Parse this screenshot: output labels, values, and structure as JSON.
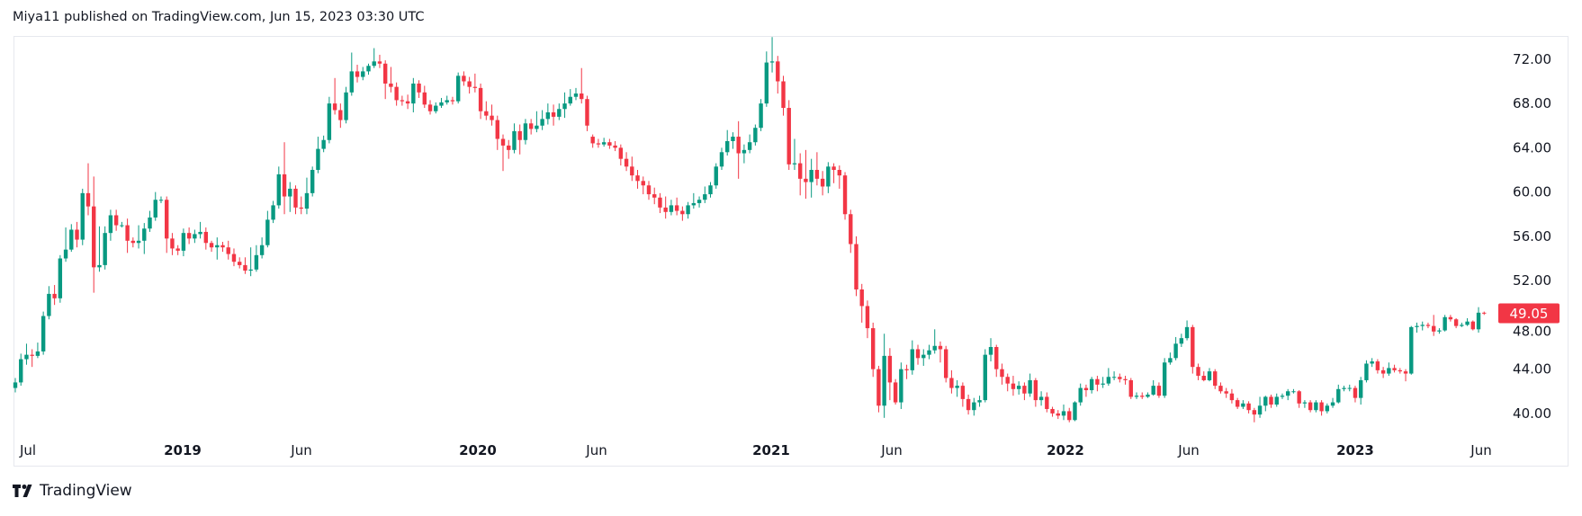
{
  "header": {
    "title": "Miya11 published on TradingView.com, Jun 15, 2023 03:30 UTC"
  },
  "footer": {
    "brand": "TradingView"
  },
  "colors": {
    "up": "#089981",
    "down": "#F23645",
    "text": "#131722",
    "last_price_bg": "#F23645"
  },
  "chart_data": {
    "type": "candlestick",
    "x_tick_labels": [
      "Jul",
      "2019",
      "Jun",
      "2020",
      "Jun",
      "2021",
      "Jun",
      "2022",
      "Jun",
      "2023",
      "Jun"
    ],
    "y_tick_labels": [
      "72.00",
      "68.00",
      "64.00",
      "60.00",
      "56.00",
      "52.00",
      "48.00",
      "44.00",
      "40.00"
    ],
    "ylim": [
      35.2,
      74.1
    ],
    "grid": false,
    "last_price": "49.05",
    "candle_format": [
      "open",
      "high",
      "low",
      "close"
    ],
    "candles": [
      [
        42.3,
        43.2,
        41.9,
        42.8
      ],
      [
        42.8,
        45.4,
        42.5,
        44.9
      ],
      [
        44.9,
        46.3,
        44.4,
        45.3
      ],
      [
        45.3,
        45.8,
        44.2,
        45.2
      ],
      [
        45.2,
        46.4,
        45.0,
        45.6
      ],
      [
        45.6,
        49.2,
        45.3,
        48.8
      ],
      [
        48.8,
        51.5,
        48.5,
        50.8
      ],
      [
        50.8,
        51.6,
        49.8,
        50.4
      ],
      [
        50.4,
        54.3,
        50.0,
        54.0
      ],
      [
        54.0,
        56.8,
        53.7,
        54.8
      ],
      [
        54.8,
        57.1,
        54.6,
        56.6
      ],
      [
        56.6,
        57.3,
        55.0,
        55.7
      ],
      [
        55.7,
        60.3,
        55.2,
        59.9
      ],
      [
        59.9,
        62.6,
        57.9,
        58.7
      ],
      [
        58.7,
        61.4,
        50.9,
        53.2
      ],
      [
        53.2,
        56.9,
        52.8,
        53.4
      ],
      [
        53.4,
        56.9,
        53.0,
        56.3
      ],
      [
        56.3,
        58.4,
        55.6,
        57.9
      ],
      [
        57.9,
        58.4,
        56.5,
        57.0
      ],
      [
        57.0,
        57.3,
        56.8,
        57.0
      ],
      [
        57.0,
        57.6,
        54.5,
        55.6
      ],
      [
        55.6,
        55.9,
        55.0,
        55.4
      ],
      [
        55.4,
        57.0,
        54.9,
        55.6
      ],
      [
        55.6,
        57.2,
        54.4,
        56.7
      ],
      [
        56.7,
        58.3,
        56.4,
        57.7
      ],
      [
        57.7,
        60.0,
        57.4,
        59.3
      ],
      [
        59.3,
        59.6,
        59.0,
        59.3
      ],
      [
        59.3,
        59.6,
        54.5,
        55.8
      ],
      [
        55.8,
        56.3,
        54.3,
        54.9
      ],
      [
        54.9,
        55.2,
        54.3,
        54.7
      ],
      [
        54.7,
        56.7,
        54.2,
        56.3
      ],
      [
        56.3,
        56.8,
        55.3,
        55.8
      ],
      [
        55.8,
        56.6,
        55.4,
        56.2
      ],
      [
        56.2,
        57.3,
        55.8,
        56.4
      ],
      [
        56.4,
        56.8,
        54.8,
        55.4
      ],
      [
        55.4,
        55.6,
        54.6,
        55.0
      ],
      [
        55.0,
        55.9,
        53.9,
        55.2
      ],
      [
        55.2,
        55.5,
        54.6,
        55.0
      ],
      [
        55.0,
        55.6,
        53.9,
        54.4
      ],
      [
        54.4,
        54.9,
        53.3,
        53.7
      ],
      [
        53.7,
        54.1,
        53.1,
        53.4
      ],
      [
        53.4,
        54.1,
        52.6,
        52.9
      ],
      [
        52.9,
        55.0,
        52.4,
        53.0
      ],
      [
        53.0,
        55.2,
        52.8,
        54.3
      ],
      [
        54.3,
        55.9,
        54.0,
        55.2
      ],
      [
        55.2,
        58.3,
        55.0,
        57.5
      ],
      [
        57.5,
        59.2,
        57.2,
        58.8
      ],
      [
        58.8,
        62.3,
        58.5,
        61.6
      ],
      [
        61.6,
        64.5,
        58.0,
        59.6
      ],
      [
        59.6,
        60.9,
        58.2,
        60.3
      ],
      [
        60.3,
        60.6,
        58.0,
        58.6
      ],
      [
        58.6,
        59.6,
        58.0,
        58.5
      ],
      [
        58.5,
        61.3,
        58.0,
        59.9
      ],
      [
        59.9,
        62.3,
        59.6,
        62.0
      ],
      [
        62.0,
        65.0,
        61.7,
        63.9
      ],
      [
        63.9,
        65.1,
        63.6,
        64.7
      ],
      [
        64.7,
        68.6,
        64.4,
        68.0
      ],
      [
        68.0,
        70.3,
        67.0,
        67.4
      ],
      [
        67.4,
        68.0,
        65.8,
        66.5
      ],
      [
        66.5,
        69.5,
        66.2,
        69.0
      ],
      [
        69.0,
        72.6,
        68.7,
        70.9
      ],
      [
        70.9,
        71.5,
        69.9,
        70.4
      ],
      [
        70.4,
        71.3,
        70.1,
        70.9
      ],
      [
        70.9,
        71.6,
        70.6,
        71.4
      ],
      [
        71.4,
        73.0,
        71.2,
        71.8
      ],
      [
        71.8,
        72.4,
        71.2,
        71.6
      ],
      [
        71.6,
        71.9,
        68.4,
        69.8
      ],
      [
        69.8,
        71.3,
        69.0,
        69.5
      ],
      [
        69.5,
        69.9,
        67.8,
        68.3
      ],
      [
        68.3,
        68.7,
        67.8,
        68.2
      ],
      [
        68.2,
        68.8,
        67.5,
        68.0
      ],
      [
        68.0,
        70.3,
        67.2,
        69.8
      ],
      [
        69.8,
        70.1,
        68.5,
        69.0
      ],
      [
        69.0,
        69.6,
        67.6,
        67.9
      ],
      [
        67.9,
        68.3,
        67.0,
        67.3
      ],
      [
        67.3,
        68.1,
        67.1,
        67.8
      ],
      [
        67.8,
        68.5,
        67.6,
        68.1
      ],
      [
        68.1,
        68.7,
        67.9,
        68.3
      ],
      [
        68.3,
        68.6,
        67.9,
        68.2
      ],
      [
        68.2,
        70.8,
        68.0,
        70.5
      ],
      [
        70.5,
        70.9,
        69.6,
        70.0
      ],
      [
        70.0,
        70.4,
        68.9,
        69.5
      ],
      [
        69.5,
        70.7,
        69.0,
        69.4
      ],
      [
        69.4,
        69.8,
        66.6,
        67.3
      ],
      [
        67.3,
        68.2,
        66.5,
        66.9
      ],
      [
        66.9,
        67.9,
        66.0,
        66.5
      ],
      [
        66.5,
        66.9,
        63.8,
        64.8
      ],
      [
        64.8,
        65.2,
        61.9,
        64.2
      ],
      [
        64.2,
        64.7,
        63.0,
        63.8
      ],
      [
        63.8,
        66.2,
        63.5,
        65.5
      ],
      [
        65.5,
        66.1,
        63.4,
        64.7
      ],
      [
        64.7,
        66.6,
        64.3,
        66.2
      ],
      [
        66.2,
        66.6,
        65.2,
        65.7
      ],
      [
        65.7,
        67.3,
        65.4,
        66.0
      ],
      [
        66.0,
        67.4,
        65.6,
        66.6
      ],
      [
        66.6,
        68.0,
        66.1,
        67.2
      ],
      [
        67.2,
        67.9,
        66.0,
        66.8
      ],
      [
        66.8,
        68.0,
        66.5,
        67.5
      ],
      [
        67.5,
        69.0,
        66.7,
        68.0
      ],
      [
        68.0,
        69.3,
        67.8,
        68.6
      ],
      [
        68.6,
        69.4,
        68.3,
        68.9
      ],
      [
        68.9,
        71.2,
        68.0,
        68.4
      ],
      [
        68.4,
        68.7,
        65.5,
        66.0
      ],
      [
        65.0,
        65.2,
        64.0,
        64.4
      ],
      [
        64.4,
        64.8,
        64.0,
        64.3
      ],
      [
        64.3,
        64.9,
        64.1,
        64.5
      ],
      [
        64.5,
        64.8,
        63.9,
        64.2
      ],
      [
        64.2,
        64.6,
        63.7,
        64.0
      ],
      [
        64.0,
        64.3,
        62.4,
        63.0
      ],
      [
        63.0,
        63.6,
        61.9,
        62.3
      ],
      [
        62.3,
        63.2,
        61.0,
        61.5
      ],
      [
        61.5,
        62.0,
        60.3,
        61.0
      ],
      [
        61.0,
        61.4,
        59.8,
        60.6
      ],
      [
        60.6,
        61.0,
        59.3,
        59.8
      ],
      [
        59.8,
        60.4,
        58.9,
        59.5
      ],
      [
        59.5,
        59.9,
        58.1,
        58.6
      ],
      [
        58.6,
        59.6,
        57.6,
        58.2
      ],
      [
        58.2,
        59.3,
        57.9,
        58.8
      ],
      [
        58.8,
        59.5,
        57.9,
        58.3
      ],
      [
        58.3,
        58.7,
        57.4,
        58.0
      ],
      [
        58.0,
        59.1,
        57.6,
        58.8
      ],
      [
        58.8,
        59.9,
        58.5,
        59.0
      ],
      [
        59.0,
        59.6,
        58.6,
        59.3
      ],
      [
        59.3,
        60.5,
        59.0,
        59.8
      ],
      [
        59.8,
        60.9,
        59.5,
        60.6
      ],
      [
        60.6,
        62.6,
        60.3,
        62.3
      ],
      [
        62.3,
        64.0,
        62.0,
        63.6
      ],
      [
        63.6,
        65.6,
        63.3,
        64.6
      ],
      [
        64.6,
        65.4,
        63.9,
        65.0
      ],
      [
        65.0,
        66.4,
        61.2,
        63.5
      ],
      [
        63.5,
        64.3,
        62.6,
        63.8
      ],
      [
        63.8,
        65.2,
        63.5,
        64.5
      ],
      [
        64.5,
        66.1,
        64.2,
        65.8
      ],
      [
        65.8,
        68.4,
        65.5,
        68.0
      ],
      [
        68.0,
        72.7,
        67.7,
        71.7
      ],
      [
        71.7,
        74.0,
        70.8,
        71.8
      ],
      [
        71.8,
        72.3,
        68.9,
        70.0
      ],
      [
        70.0,
        70.5,
        66.9,
        67.6
      ],
      [
        67.6,
        68.3,
        62.0,
        62.5
      ],
      [
        62.5,
        64.8,
        62.0,
        62.6
      ],
      [
        62.6,
        63.5,
        59.7,
        61.2
      ],
      [
        61.2,
        63.8,
        59.4,
        60.9
      ],
      [
        60.9,
        63.0,
        59.5,
        62.0
      ],
      [
        62.0,
        63.6,
        60.6,
        61.2
      ],
      [
        61.2,
        61.9,
        59.7,
        60.5
      ],
      [
        60.5,
        62.7,
        59.9,
        62.3
      ],
      [
        62.3,
        62.6,
        60.8,
        62.0
      ],
      [
        62.0,
        62.4,
        60.3,
        61.5
      ],
      [
        61.5,
        61.8,
        57.5,
        58.0
      ],
      [
        58.0,
        58.4,
        54.5,
        55.3
      ],
      [
        55.3,
        56.0,
        50.6,
        51.2
      ],
      [
        51.2,
        51.7,
        48.2,
        49.7
      ],
      [
        49.7,
        50.2,
        46.8,
        47.7
      ],
      [
        47.7,
        48.2,
        43.3,
        44.0
      ],
      [
        44.0,
        44.3,
        40.1,
        40.7
      ],
      [
        40.7,
        47.2,
        39.6,
        45.2
      ],
      [
        45.2,
        45.9,
        41.2,
        42.8
      ],
      [
        42.8,
        43.1,
        40.8,
        41.0
      ],
      [
        41.0,
        44.6,
        40.4,
        44.0
      ],
      [
        44.0,
        44.4,
        43.1,
        43.9
      ],
      [
        43.9,
        46.6,
        43.5,
        45.8
      ],
      [
        45.8,
        46.2,
        44.4,
        45.0
      ],
      [
        45.0,
        45.8,
        44.3,
        45.3
      ],
      [
        45.3,
        46.2,
        44.9,
        45.7
      ],
      [
        45.7,
        47.6,
        45.4,
        46.1
      ],
      [
        46.1,
        46.5,
        44.6,
        45.8
      ],
      [
        45.8,
        46.1,
        42.8,
        43.2
      ],
      [
        43.2,
        43.9,
        41.8,
        42.3
      ],
      [
        42.3,
        43.0,
        41.5,
        42.5
      ],
      [
        42.5,
        42.8,
        40.6,
        41.3
      ],
      [
        41.3,
        41.7,
        39.9,
        40.3
      ],
      [
        40.3,
        41.4,
        39.8,
        41.0
      ],
      [
        41.0,
        41.6,
        40.6,
        41.2
      ],
      [
        41.2,
        45.8,
        41.0,
        45.3
      ],
      [
        45.3,
        46.8,
        44.7,
        46.0
      ],
      [
        46.0,
        46.2,
        43.3,
        44.0
      ],
      [
        44.0,
        44.5,
        42.6,
        43.3
      ],
      [
        43.3,
        43.6,
        42.0,
        42.7
      ],
      [
        42.7,
        43.4,
        41.6,
        42.2
      ],
      [
        42.2,
        42.9,
        41.7,
        42.5
      ],
      [
        42.5,
        42.8,
        41.2,
        41.8
      ],
      [
        41.8,
        43.6,
        41.5,
        43.0
      ],
      [
        43.0,
        43.2,
        40.6,
        41.2
      ],
      [
        41.2,
        42.0,
        40.7,
        41.5
      ],
      [
        41.5,
        41.9,
        40.1,
        40.4
      ],
      [
        40.4,
        40.6,
        39.7,
        40.0
      ],
      [
        40.0,
        40.3,
        39.5,
        39.8
      ],
      [
        39.8,
        40.8,
        39.4,
        40.2
      ],
      [
        40.2,
        40.5,
        39.2,
        39.4
      ],
      [
        39.4,
        41.1,
        39.3,
        41.0
      ],
      [
        41.0,
        42.7,
        40.7,
        42.3
      ],
      [
        42.3,
        42.6,
        41.5,
        42.1
      ],
      [
        42.1,
        43.3,
        41.8,
        43.1
      ],
      [
        43.1,
        43.4,
        42.0,
        42.6
      ],
      [
        42.6,
        43.3,
        42.3,
        42.7
      ],
      [
        42.7,
        44.1,
        42.5,
        43.3
      ],
      [
        43.3,
        43.8,
        43.0,
        43.3
      ],
      [
        43.3,
        43.6,
        42.8,
        43.1
      ],
      [
        43.1,
        43.4,
        42.6,
        43.0
      ],
      [
        43.0,
        43.2,
        41.3,
        41.5
      ],
      [
        41.5,
        41.9,
        41.3,
        41.6
      ],
      [
        41.6,
        41.9,
        41.3,
        41.5
      ],
      [
        41.5,
        41.9,
        41.4,
        41.7
      ],
      [
        41.7,
        43.0,
        41.6,
        42.5
      ],
      [
        42.5,
        42.8,
        41.4,
        41.6
      ],
      [
        41.6,
        45.0,
        41.4,
        44.6
      ],
      [
        44.6,
        45.5,
        44.4,
        45.0
      ],
      [
        45.0,
        46.9,
        44.8,
        46.3
      ],
      [
        46.3,
        47.2,
        46.0,
        46.8
      ],
      [
        46.8,
        48.4,
        46.6,
        47.8
      ],
      [
        47.8,
        48.0,
        43.6,
        44.2
      ],
      [
        44.2,
        44.5,
        43.0,
        43.4
      ],
      [
        43.4,
        43.8,
        42.9,
        43.0
      ],
      [
        43.0,
        44.1,
        42.9,
        43.8
      ],
      [
        43.8,
        44.0,
        42.2,
        42.5
      ],
      [
        42.5,
        42.8,
        41.8,
        42.0
      ],
      [
        42.0,
        42.3,
        41.4,
        41.8
      ],
      [
        41.8,
        42.2,
        40.9,
        41.2
      ],
      [
        41.2,
        41.4,
        40.4,
        40.6
      ],
      [
        40.6,
        41.2,
        40.4,
        40.9
      ],
      [
        40.9,
        41.1,
        40.0,
        40.3
      ],
      [
        40.3,
        40.5,
        39.2,
        39.9
      ],
      [
        39.9,
        41.5,
        39.6,
        40.7
      ],
      [
        40.7,
        41.6,
        40.2,
        41.5
      ],
      [
        41.5,
        41.7,
        40.5,
        40.8
      ],
      [
        40.8,
        41.8,
        40.6,
        41.5
      ],
      [
        41.5,
        41.8,
        41.3,
        41.6
      ],
      [
        41.6,
        42.2,
        41.2,
        42.0
      ],
      [
        42.0,
        42.2,
        41.8,
        42.0
      ],
      [
        42.0,
        42.1,
        40.5,
        40.9
      ],
      [
        40.9,
        41.2,
        40.5,
        41.0
      ],
      [
        41.0,
        41.2,
        40.1,
        40.3
      ],
      [
        40.3,
        41.2,
        40.1,
        41.0
      ],
      [
        41.0,
        41.2,
        39.8,
        40.2
      ],
      [
        40.2,
        40.9,
        40.0,
        40.7
      ],
      [
        40.7,
        41.4,
        40.5,
        41.0
      ],
      [
        41.0,
        42.6,
        40.9,
        42.2
      ],
      [
        42.2,
        42.5,
        42.0,
        42.3
      ],
      [
        42.3,
        42.6,
        42.0,
        42.3
      ],
      [
        42.3,
        42.5,
        41.0,
        41.4
      ],
      [
        41.4,
        43.3,
        40.8,
        43.0
      ],
      [
        43.0,
        44.8,
        42.8,
        44.5
      ],
      [
        44.5,
        45.0,
        44.2,
        44.7
      ],
      [
        44.7,
        44.9,
        43.6,
        43.9
      ],
      [
        43.9,
        44.2,
        43.2,
        43.6
      ],
      [
        43.6,
        44.6,
        43.4,
        44.1
      ],
      [
        44.1,
        44.4,
        43.7,
        43.9
      ],
      [
        43.9,
        44.1,
        43.6,
        43.8
      ],
      [
        43.8,
        44.0,
        42.9,
        43.6
      ],
      [
        43.6,
        47.9,
        43.5,
        47.8
      ],
      [
        47.8,
        48.2,
        47.3,
        47.9
      ],
      [
        47.9,
        48.3,
        47.5,
        48.0
      ],
      [
        48.0,
        48.2,
        47.7,
        47.9
      ],
      [
        47.9,
        48.9,
        47.0,
        47.4
      ],
      [
        47.4,
        47.7,
        47.2,
        47.5
      ],
      [
        47.5,
        48.9,
        47.4,
        48.7
      ],
      [
        48.7,
        48.9,
        48.3,
        48.5
      ],
      [
        48.5,
        48.6,
        47.7,
        47.9
      ],
      [
        47.9,
        48.2,
        47.8,
        48.0
      ],
      [
        48.0,
        48.6,
        47.9,
        48.3
      ],
      [
        48.3,
        48.4,
        47.5,
        47.6
      ],
      [
        47.6,
        49.6,
        47.3,
        49.1
      ],
      [
        49.1,
        49.2,
        48.9,
        49.05
      ]
    ]
  }
}
